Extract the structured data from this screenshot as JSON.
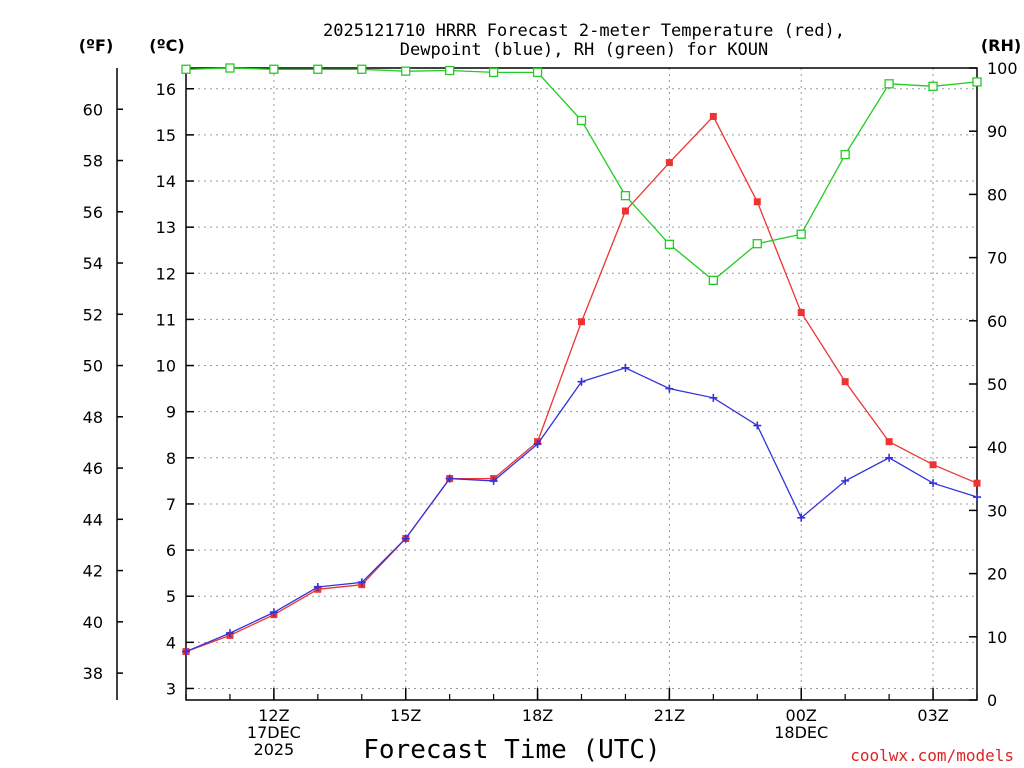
{
  "chart_data": {
    "type": "line",
    "title_lines": [
      "2025121710 HRRR Forecast 2-meter Temperature (red),",
      "Dewpoint (blue), RH (green) for KOUN"
    ],
    "left_outer_unit": "(ºF)",
    "left_inner_unit": "(ºC)",
    "right_unit": "(RH)",
    "xlabel": "Forecast Time (UTC)",
    "credit": "coolwx.com/models",
    "x_hours": [
      10,
      11,
      12,
      13,
      14,
      15,
      16,
      17,
      18,
      19,
      20,
      21,
      22,
      23,
      24,
      25,
      26,
      27,
      28
    ],
    "x_range": [
      10,
      28
    ],
    "x_ticks": [
      {
        "hour": 12,
        "lines": [
          "12Z",
          "17DEC",
          "2025"
        ]
      },
      {
        "hour": 15,
        "lines": [
          "15Z"
        ]
      },
      {
        "hour": 18,
        "lines": [
          "18Z"
        ]
      },
      {
        "hour": 21,
        "lines": [
          "21Z"
        ]
      },
      {
        "hour": 24,
        "lines": [
          "00Z",
          "18DEC"
        ]
      },
      {
        "hour": 27,
        "lines": [
          "03Z"
        ]
      }
    ],
    "celsius_range": [
      2.75,
      16.45
    ],
    "celsius_ticks": [
      3,
      4,
      5,
      6,
      7,
      8,
      9,
      10,
      11,
      12,
      13,
      14,
      15,
      16
    ],
    "fahrenheit_ticks": [
      38,
      40,
      42,
      44,
      46,
      48,
      50,
      52,
      54,
      56,
      58,
      60
    ],
    "rh_range": [
      0,
      100
    ],
    "rh_ticks": [
      0,
      10,
      20,
      30,
      40,
      50,
      60,
      70,
      80,
      90,
      100
    ],
    "series": [
      {
        "name": "Temperature",
        "units": "C",
        "axis": "celsius",
        "color": "#ee3333",
        "marker": "filled-square",
        "values": [
          3.8,
          4.15,
          4.6,
          5.15,
          5.25,
          6.25,
          7.55,
          7.55,
          8.35,
          10.95,
          13.35,
          14.4,
          15.4,
          13.55,
          11.15,
          9.65,
          8.35,
          7.85,
          7.45
        ]
      },
      {
        "name": "Dewpoint",
        "units": "C",
        "axis": "celsius",
        "color": "#3333dd",
        "marker": "plus",
        "values": [
          3.8,
          4.2,
          4.65,
          5.2,
          5.3,
          6.25,
          7.55,
          7.5,
          8.3,
          9.65,
          9.95,
          9.5,
          9.3,
          8.7,
          6.7,
          7.5,
          8.0,
          7.45,
          7.15
        ]
      },
      {
        "name": "RH",
        "units": "%",
        "axis": "rh",
        "color": "#22cc22",
        "marker": "open-square",
        "values": [
          99.8,
          100,
          99.8,
          99.8,
          99.8,
          99.5,
          99.6,
          99.3,
          99.3,
          91.7,
          79.8,
          72.1,
          66.4,
          72.2,
          73.7,
          86.3,
          97.5,
          97.1,
          97.8
        ]
      }
    ]
  }
}
